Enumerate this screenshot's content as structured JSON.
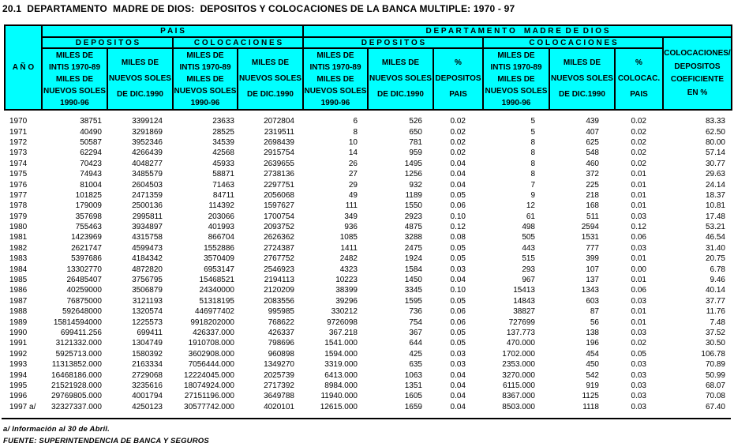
{
  "title": "20.1  DEPARTAMENTO  MADRE DE DIOS:  DEPOSITOS Y COLOCACIONES DE LA BANCA MULTIPLE: 1970 - 97",
  "colors": {
    "header_bg": "#00ffff",
    "border": "#000000",
    "text": "#000000",
    "page_bg": "#ffffff"
  },
  "table": {
    "ano_label": "A Ñ O",
    "pais_label": "P A I S",
    "dpto_label": "D E P A R T A M E N T O    M A D R E  D E  D I O S",
    "depositos_label": "D E P O S I T O S",
    "colocaciones_label": "C O L O C A C I O N E S",
    "col_intis": "MILES DE\nINTIS 1970-89\nMILES DE\nNUEVOS SOLES\n1990-96",
    "col_soles": "MILES DE\nNUEVOS SOLES\nDE DIC.1990",
    "col_pct_depositos": "%\nDEPOSITOS\nPAIS",
    "col_pct_colocaciones": "%\nCOLOCAC.\nPAIS",
    "col_coeficiente": "COLOCACIONES/\nDEPOSITOS\nCOEFICIENTE\nEN %",
    "rows": [
      [
        "1970",
        "38751",
        "3399124",
        "23633",
        "2072804",
        "6",
        "526",
        "0.02",
        "5",
        "439",
        "0.02",
        "83.33"
      ],
      [
        "1971",
        "40490",
        "3291869",
        "28525",
        "2319511",
        "8",
        "650",
        "0.02",
        "5",
        "407",
        "0.02",
        "62.50"
      ],
      [
        "1972",
        "50587",
        "3952346",
        "34539",
        "2698439",
        "10",
        "781",
        "0.02",
        "8",
        "625",
        "0.02",
        "80.00"
      ],
      [
        "1973",
        "62294",
        "4266439",
        "42568",
        "2915754",
        "14",
        "959",
        "0.02",
        "8",
        "548",
        "0.02",
        "57.14"
      ],
      [
        "1974",
        "70423",
        "4048277",
        "45933",
        "2639655",
        "26",
        "1495",
        "0.04",
        "8",
        "460",
        "0.02",
        "30.77"
      ],
      [
        "1975",
        "74943",
        "3485579",
        "58871",
        "2738136",
        "27",
        "1256",
        "0.04",
        "8",
        "372",
        "0.01",
        "29.63"
      ],
      [
        "1976",
        "81004",
        "2604503",
        "71463",
        "2297751",
        "29",
        "932",
        "0.04",
        "7",
        "225",
        "0.01",
        "24.14"
      ],
      [
        "1977",
        "101825",
        "2471359",
        "84711",
        "2056068",
        "49",
        "1189",
        "0.05",
        "9",
        "218",
        "0.01",
        "18.37"
      ],
      [
        "1978",
        "179009",
        "2500136",
        "114392",
        "1597627",
        "111",
        "1550",
        "0.06",
        "12",
        "168",
        "0.01",
        "10.81"
      ],
      [
        "1979",
        "357698",
        "2995811",
        "203066",
        "1700754",
        "349",
        "2923",
        "0.10",
        "61",
        "511",
        "0.03",
        "17.48"
      ],
      [
        "1980",
        "755463",
        "3934897",
        "401993",
        "2093752",
        "936",
        "4875",
        "0.12",
        "498",
        "2594",
        "0.12",
        "53.21"
      ],
      [
        "1981",
        "1423969",
        "4315758",
        "866704",
        "2626362",
        "1085",
        "3288",
        "0.08",
        "505",
        "1531",
        "0.06",
        "46.54"
      ],
      [
        "1982",
        "2621747",
        "4599473",
        "1552886",
        "2724387",
        "1411",
        "2475",
        "0.05",
        "443",
        "777",
        "0.03",
        "31.40"
      ],
      [
        "1983",
        "5397686",
        "4184342",
        "3570409",
        "2767752",
        "2482",
        "1924",
        "0.05",
        "515",
        "399",
        "0.01",
        "20.75"
      ],
      [
        "1984",
        "13302770",
        "4872820",
        "6953147",
        "2546923",
        "4323",
        "1584",
        "0.03",
        "293",
        "107",
        "0.00",
        "6.78"
      ],
      [
        "1985",
        "26485407",
        "3756795",
        "15468521",
        "2194113",
        "10223",
        "1450",
        "0.04",
        "967",
        "137",
        "0.01",
        "9.46"
      ],
      [
        "1986",
        "40259000",
        "3506879",
        "24340000",
        "2120209",
        "38399",
        "3345",
        "0.10",
        "15413",
        "1343",
        "0.06",
        "40.14"
      ],
      [
        "1987",
        "76875000",
        "3121193",
        "51318195",
        "2083556",
        "39296",
        "1595",
        "0.05",
        "14843",
        "603",
        "0.03",
        "37.77"
      ],
      [
        "1988",
        "592648000",
        "1320574",
        "446977402",
        "995985",
        "330212",
        "736",
        "0.06",
        "38827",
        "87",
        "0.01",
        "11.76"
      ],
      [
        "1989",
        "15814594000",
        "1225573",
        "9918202000",
        "768622",
        "9726098",
        "754",
        "0.06",
        "727699",
        "56",
        "0.01",
        "7.48"
      ],
      [
        "1990",
        "699411.256",
        "699411",
        "426337.000",
        "426337",
        "367.218",
        "367",
        "0.05",
        "137.773",
        "138",
        "0.03",
        "37.52"
      ],
      [
        "1991",
        "3121332.000",
        "1304749",
        "1910708.000",
        "798696",
        "1541.000",
        "644",
        "0.05",
        "470.000",
        "196",
        "0.02",
        "30.50"
      ],
      [
        "1992",
        "5925713.000",
        "1580392",
        "3602908.000",
        "960898",
        "1594.000",
        "425",
        "0.03",
        "1702.000",
        "454",
        "0.05",
        "106.78"
      ],
      [
        "1993",
        "11313852.000",
        "2163334",
        "7056444.000",
        "1349270",
        "3319.000",
        "635",
        "0.03",
        "2353.000",
        "450",
        "0.03",
        "70.89"
      ],
      [
        "1994",
        "16468186.000",
        "2729068",
        "12224045.000",
        "2025739",
        "6413.000",
        "1063",
        "0.04",
        "3270.000",
        "542",
        "0.03",
        "50.99"
      ],
      [
        "1995",
        "21521928.000",
        "3235616",
        "18074924.000",
        "2717392",
        "8984.000",
        "1351",
        "0.04",
        "6115.000",
        "919",
        "0.03",
        "68.07"
      ],
      [
        "1996",
        "29769805.000",
        "4001794",
        "27151196.000",
        "3649788",
        "11940.000",
        "1605",
        "0.04",
        "8367.000",
        "1125",
        "0.03",
        "70.08"
      ],
      [
        "1997 a/",
        "32327337.000",
        "4250123",
        "30577742.000",
        "4020101",
        "12615.000",
        "1659",
        "0.04",
        "8503.000",
        "1118",
        "0.03",
        "67.40"
      ]
    ]
  },
  "footnotes": {
    "note": "a/ Información al 30 de Abril.",
    "source": "FUENTE: SUPERINTENDENCIA DE BANCA Y SEGUROS"
  }
}
